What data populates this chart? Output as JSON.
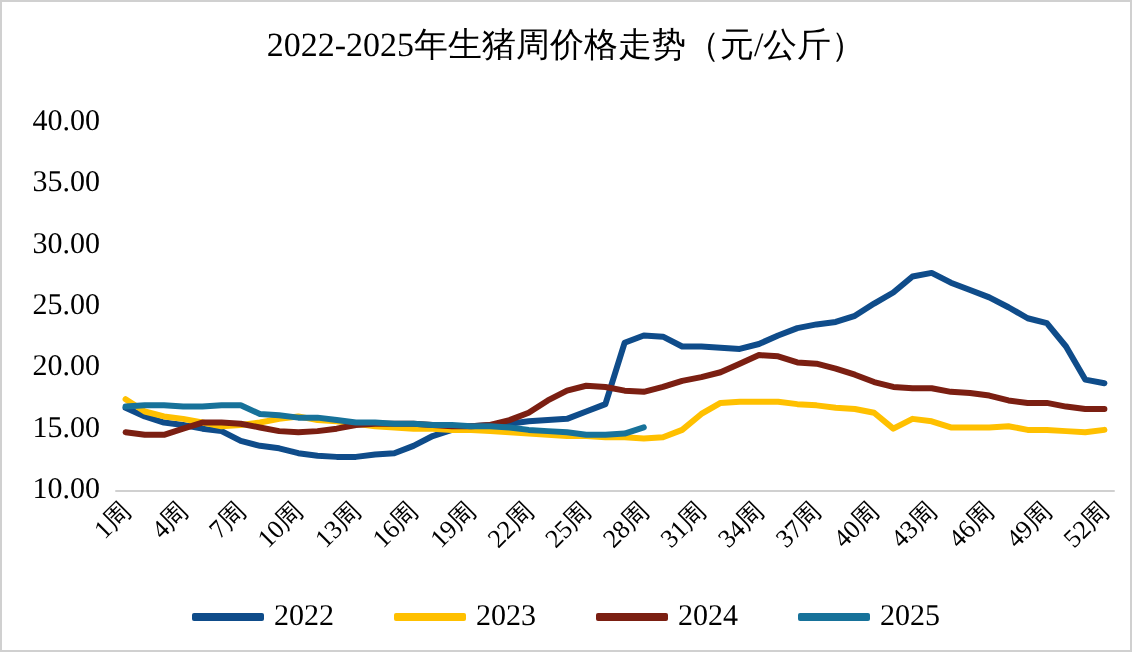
{
  "chart_data": {
    "type": "line",
    "title": "2022-2025年生猪周价格走势（元/公斤）",
    "categories": [
      "1周",
      null,
      null,
      "4周",
      null,
      null,
      "7周",
      null,
      null,
      "10周",
      null,
      null,
      "13周",
      null,
      null,
      "16周",
      null,
      null,
      "19周",
      null,
      null,
      "22周",
      null,
      null,
      "25周",
      null,
      null,
      "28周",
      null,
      null,
      "31周",
      null,
      null,
      "34周",
      null,
      null,
      "37周",
      null,
      null,
      "40周",
      null,
      null,
      "43周",
      null,
      null,
      "46周",
      null,
      null,
      "49周",
      null,
      null,
      "52周"
    ],
    "series": [
      {
        "name": "2022",
        "color": "#0f4c8a",
        "values": [
          16.7,
          16.0,
          15.5,
          15.3,
          15.0,
          14.8,
          14.0,
          13.6,
          13.4,
          13.0,
          12.8,
          12.7,
          12.7,
          12.9,
          13.0,
          13.6,
          14.4,
          14.9,
          15.2,
          15.3,
          15.4,
          15.6,
          15.7,
          15.8,
          16.4,
          17.0,
          22.0,
          22.6,
          22.5,
          21.7,
          21.7,
          21.6,
          21.5,
          21.9,
          22.6,
          23.2,
          23.5,
          23.7,
          24.2,
          25.2,
          26.1,
          27.4,
          27.7,
          26.9,
          26.3,
          25.7,
          24.9,
          24.0,
          23.6,
          21.7,
          19.0,
          18.7
        ]
      },
      {
        "name": "2023",
        "color": "#ffc000",
        "values": [
          17.4,
          16.4,
          16.0,
          15.8,
          15.5,
          15.2,
          15.3,
          15.5,
          15.8,
          16.0,
          15.7,
          15.6,
          15.4,
          15.2,
          15.1,
          15.0,
          15.0,
          14.9,
          14.9,
          14.8,
          14.7,
          14.6,
          14.5,
          14.4,
          14.4,
          14.3,
          14.3,
          14.2,
          14.3,
          14.9,
          16.2,
          17.1,
          17.2,
          17.2,
          17.2,
          17.0,
          16.9,
          16.7,
          16.6,
          16.3,
          15.0,
          15.8,
          15.6,
          15.1,
          15.1,
          15.1,
          15.2,
          14.9,
          14.9,
          14.8,
          14.7,
          14.9
        ]
      },
      {
        "name": "2024",
        "color": "#7b1f12",
        "values": [
          14.7,
          14.5,
          14.5,
          15.0,
          15.5,
          15.5,
          15.4,
          15.1,
          14.8,
          14.7,
          14.8,
          15.0,
          15.3,
          15.4,
          15.4,
          15.4,
          15.3,
          15.2,
          15.2,
          15.3,
          15.7,
          16.3,
          17.3,
          18.1,
          18.5,
          18.4,
          18.1,
          18.0,
          18.4,
          18.9,
          19.2,
          19.6,
          20.3,
          21.0,
          20.9,
          20.4,
          20.3,
          19.9,
          19.4,
          18.8,
          18.4,
          18.3,
          18.3,
          18.0,
          17.9,
          17.7,
          17.3,
          17.1,
          17.1,
          16.8,
          16.6,
          16.6
        ]
      },
      {
        "name": "2025",
        "color": "#17729a",
        "values": [
          16.8,
          16.9,
          16.9,
          16.8,
          16.8,
          16.9,
          16.9,
          16.2,
          16.1,
          15.9,
          15.9,
          15.7,
          15.5,
          15.5,
          15.4,
          15.4,
          15.3,
          15.3,
          15.2,
          15.2,
          15.1,
          14.9,
          14.8,
          14.7,
          14.5,
          14.5,
          14.6,
          15.1,
          null,
          null,
          null,
          null,
          null,
          null,
          null,
          null,
          null,
          null,
          null,
          null,
          null,
          null,
          null,
          null,
          null,
          null,
          null,
          null,
          null,
          null,
          null,
          null
        ]
      }
    ],
    "ylim": [
      10,
      40
    ],
    "yticks": [
      {
        "value": 10,
        "label": "10.00"
      },
      {
        "value": 15,
        "label": "15.00"
      },
      {
        "value": 20,
        "label": "20.00"
      },
      {
        "value": 25,
        "label": "25.00"
      },
      {
        "value": 30,
        "label": "30.00"
      },
      {
        "value": 35,
        "label": "35.00"
      },
      {
        "value": 40,
        "label": "40.00"
      }
    ],
    "grid": false,
    "legend": "bottom",
    "marker": "none",
    "line_style": "solid"
  }
}
